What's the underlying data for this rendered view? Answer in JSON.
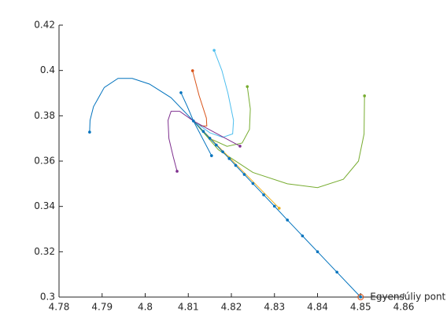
{
  "chart_data": {
    "type": "line",
    "xlim": [
      4.78,
      4.86
    ],
    "xticks": [
      4.78,
      4.79,
      4.8,
      4.81,
      4.82,
      4.83,
      4.84,
      4.85,
      4.86
    ],
    "ylim": [
      0.3,
      0.42
    ],
    "yticks": [
      0.3,
      0.32,
      0.34,
      0.36,
      0.38,
      0.4,
      0.42
    ],
    "series": [
      {
        "color": "#0072BD",
        "marker": "start",
        "x": [
          4.7871,
          4.7872,
          4.788,
          4.7905,
          4.7937,
          4.797,
          4.801,
          4.806,
          4.8112
        ],
        "values": [
          0.3728,
          0.378,
          0.384,
          0.3925,
          0.3965,
          0.3965,
          0.394,
          0.388,
          0.3777
        ]
      },
      {
        "color": "#7E2F8E",
        "marker": "start",
        "x": [
          4.8074,
          4.8065,
          4.8055,
          4.8053,
          4.806,
          4.808,
          4.8112
        ],
        "values": [
          0.3555,
          0.362,
          0.37,
          0.378,
          0.382,
          0.382,
          0.3777
        ]
      },
      {
        "color": "#0072BD",
        "marker": "start",
        "x": [
          4.8083,
          4.8098,
          4.8112
        ],
        "values": [
          0.3902,
          0.384,
          0.3777
        ]
      },
      {
        "color": "#D95319",
        "marker": "start",
        "x": [
          4.811,
          4.8125,
          4.8142,
          4.8143,
          4.813,
          4.8112
        ],
        "values": [
          0.3999,
          0.389,
          0.379,
          0.3755,
          0.3755,
          0.3777
        ]
      },
      {
        "color": "#4DBEEE",
        "marker": "start",
        "x": [
          4.816,
          4.8178,
          4.8192,
          4.8205,
          4.8203,
          4.818,
          4.815,
          4.8112
        ],
        "values": [
          0.4089,
          0.4,
          0.39,
          0.378,
          0.372,
          0.3705,
          0.3725,
          0.3777
        ]
      },
      {
        "color": "#77AC30",
        "marker": "start",
        "x": [
          4.8237,
          4.8244,
          4.8242,
          4.8225,
          4.819,
          4.815,
          4.8112
        ],
        "values": [
          0.3929,
          0.383,
          0.374,
          0.368,
          0.3665,
          0.37,
          0.3777
        ]
      },
      {
        "color": "#77AC30",
        "marker": "start",
        "x": [
          4.8509,
          4.8508,
          4.8495,
          4.846,
          4.84,
          4.833,
          4.825,
          4.817,
          4.8112
        ],
        "values": [
          0.3888,
          0.372,
          0.36,
          0.352,
          0.3483,
          0.35,
          0.355,
          0.365,
          0.3777
        ]
      },
      {
        "color": "#0072BD",
        "marker": "start",
        "x": [
          4.8154,
          4.8112
        ],
        "values": [
          0.3624,
          0.3777
        ]
      },
      {
        "color": "#7E2F8E",
        "marker": "start",
        "x": [
          4.822,
          4.8112
        ],
        "values": [
          0.3666,
          0.3777
        ]
      },
      {
        "color": "#EDB120",
        "marker": "end",
        "x": [
          4.8112,
          4.8311
        ],
        "values": [
          0.3777,
          0.3392
        ]
      },
      {
        "color": "#0072BD",
        "marker": "all",
        "x": [
          4.8112,
          4.8135,
          4.815,
          4.8165,
          4.818,
          4.8195,
          4.821,
          4.823,
          4.825,
          4.8275,
          4.83,
          4.833,
          4.8365,
          4.84,
          4.8445,
          4.85
        ],
        "values": [
          0.3777,
          0.3731,
          0.3701,
          0.3671,
          0.3641,
          0.3611,
          0.3581,
          0.3541,
          0.3501,
          0.3451,
          0.3401,
          0.334,
          0.327,
          0.32,
          0.311,
          0.3
        ]
      }
    ],
    "annotation": {
      "text": "Egyensúliy pont",
      "x": 4.85,
      "y": 0.3,
      "color": "#D95319"
    }
  }
}
